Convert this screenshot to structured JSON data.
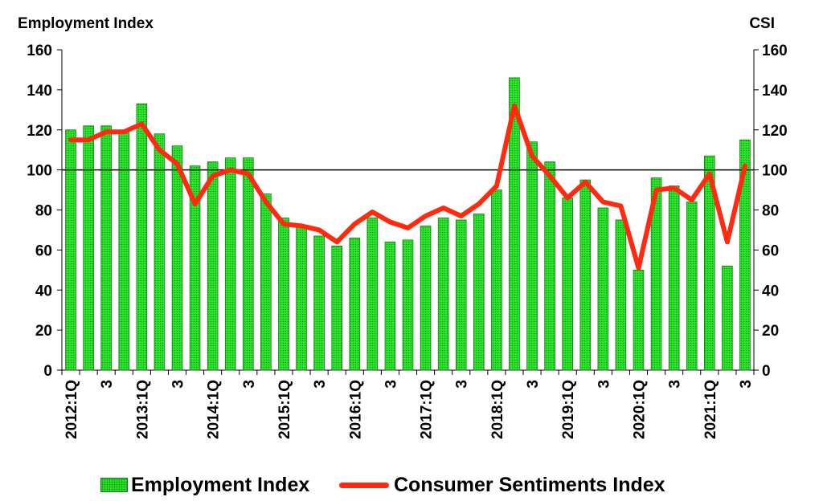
{
  "chart_data": {
    "type": "bar+line",
    "y_left_label": "Employment Index",
    "y_right_label": "CSI",
    "ylim": [
      0,
      160
    ],
    "yticks": [
      "0",
      "20",
      "40",
      "60",
      "80",
      "100",
      "120",
      "140",
      "160"
    ],
    "reference_line": 100,
    "x_labels": [
      "2012:1Q",
      "",
      "3",
      "",
      "2013:1Q",
      "",
      "3",
      "",
      "2014:1Q",
      "",
      "3",
      "",
      "2015:1Q",
      "",
      "3",
      "",
      "2016:1Q",
      "",
      "3",
      "",
      "2017:1Q",
      "",
      "3",
      "",
      "2018:1Q",
      "",
      "3",
      "",
      "2019:1Q",
      "",
      "3",
      "",
      "2020:1Q",
      "",
      "3",
      "",
      "2021:1Q",
      "",
      "3"
    ],
    "series": [
      {
        "name": "Employment Index",
        "kind": "bar",
        "color": "#2ee52e",
        "values": [
          120,
          122,
          122,
          120,
          133,
          118,
          112,
          102,
          104,
          106,
          106,
          88,
          76,
          72,
          67,
          62,
          66,
          76,
          64,
          65,
          72,
          76,
          75,
          78,
          90,
          146,
          114,
          104,
          86,
          95,
          81,
          75,
          50,
          96,
          92,
          84,
          107,
          52,
          115
        ]
      },
      {
        "name": "Consumer Sentiments Index",
        "kind": "line",
        "color": "#ff2a0f",
        "values": [
          115,
          115,
          119,
          119,
          123,
          110,
          103,
          83,
          97,
          100,
          98,
          84,
          73,
          72,
          70,
          64,
          73,
          79,
          74,
          71,
          77,
          81,
          77,
          83,
          92,
          132,
          107,
          97,
          86,
          94,
          84,
          82,
          51,
          90,
          91,
          85,
          98,
          64,
          102
        ]
      }
    ],
    "legend_position": "bottom"
  }
}
